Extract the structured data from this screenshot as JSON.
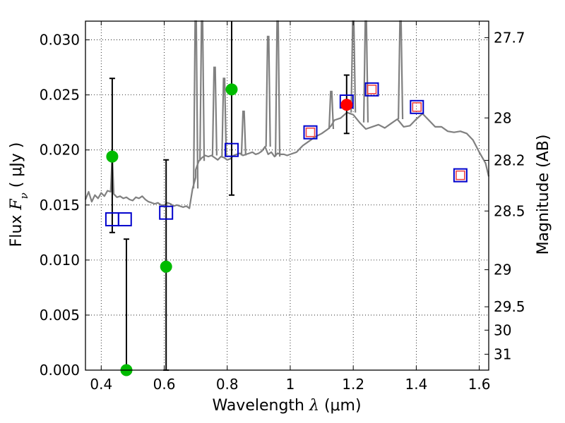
{
  "chart_data": {
    "type": "scatter",
    "xlabel": "Wavelength",
    "xlabel_symbol": "λ",
    "xlabel_unit": "(μm)",
    "ylabel": "Flux",
    "ylabel_symbol": "F",
    "ylabel_subscript": "ν",
    "ylabel_unit": "( μJy )",
    "y2label": "Magnitude (AB)",
    "xlim": [
      0.35,
      1.63
    ],
    "ylim": [
      0.0,
      0.0317
    ],
    "grid": true,
    "x_ticks": [
      0.4,
      0.6,
      0.8,
      1.0,
      1.2,
      1.4,
      1.6
    ],
    "x_tick_labels": [
      "0.4",
      "0.6",
      "0.8",
      "1",
      "1.2",
      "1.4",
      "1.6"
    ],
    "y_ticks": [
      0.0,
      0.005,
      0.01,
      0.015,
      0.02,
      0.025,
      0.03
    ],
    "y_tick_labels": [
      "0.000",
      "0.005",
      "0.010",
      "0.015",
      "0.020",
      "0.025",
      "0.030"
    ],
    "y2_ticks": [
      27.7,
      28.0,
      28.2,
      28.5,
      29.0,
      29.5,
      30.0,
      31.0
    ],
    "y2_tick_labels": [
      "27.7",
      "28",
      "28.2",
      "28.5",
      "29",
      "29.5",
      "30",
      "31"
    ],
    "series": [
      {
        "name": "model_spectrum",
        "style": "line",
        "color": "#808080",
        "x": [
          0.35,
          0.36,
          0.37,
          0.38,
          0.39,
          0.4,
          0.41,
          0.42,
          0.43,
          0.435,
          0.44,
          0.45,
          0.46,
          0.47,
          0.48,
          0.49,
          0.5,
          0.51,
          0.52,
          0.53,
          0.54,
          0.55,
          0.56,
          0.57,
          0.58,
          0.59,
          0.6,
          0.61,
          0.62,
          0.63,
          0.64,
          0.65,
          0.66,
          0.67,
          0.68,
          0.69,
          0.7,
          0.7,
          0.71,
          0.72,
          0.73,
          0.74,
          0.75,
          0.76,
          0.77,
          0.78,
          0.79,
          0.8,
          0.81,
          0.82,
          0.83,
          0.84,
          0.85,
          0.86,
          0.87,
          0.88,
          0.89,
          0.9,
          0.91,
          0.92,
          0.93,
          0.94,
          0.95,
          0.96,
          0.97,
          0.98,
          0.99,
          1.0,
          1.02,
          1.04,
          1.06,
          1.08,
          1.1,
          1.12,
          1.13,
          1.14,
          1.16,
          1.18,
          1.2,
          1.22,
          1.24,
          1.26,
          1.28,
          1.3,
          1.32,
          1.34,
          1.36,
          1.38,
          1.4,
          1.42,
          1.44,
          1.46,
          1.48,
          1.5,
          1.52,
          1.54,
          1.56,
          1.58,
          1.6,
          1.62,
          1.63
        ],
        "y": [
          0.0155,
          0.0162,
          0.0153,
          0.0159,
          0.0156,
          0.0161,
          0.0158,
          0.0163,
          0.0162,
          0.0195,
          0.016,
          0.0157,
          0.0158,
          0.0156,
          0.0157,
          0.0155,
          0.0154,
          0.0157,
          0.0156,
          0.0158,
          0.0155,
          0.0153,
          0.0152,
          0.0151,
          0.0152,
          0.015,
          0.015,
          0.0152,
          0.0151,
          0.0149,
          0.015,
          0.0149,
          0.0148,
          0.0149,
          0.0147,
          0.0165,
          0.0175,
          0.0182,
          0.019,
          0.0193,
          0.0195,
          0.0194,
          0.0195,
          0.0193,
          0.0191,
          0.0194,
          0.0193,
          0.0191,
          0.0192,
          0.0195,
          0.0196,
          0.0197,
          0.0195,
          0.0196,
          0.0197,
          0.0198,
          0.0196,
          0.0197,
          0.0199,
          0.0203,
          0.0196,
          0.0198,
          0.0194,
          0.0197,
          0.0196,
          0.0196,
          0.0195,
          0.0196,
          0.0198,
          0.0204,
          0.0208,
          0.0212,
          0.0215,
          0.0219,
          0.0222,
          0.0227,
          0.0229,
          0.0234,
          0.0232,
          0.0225,
          0.0219,
          0.0221,
          0.0223,
          0.022,
          0.0224,
          0.0228,
          0.0221,
          0.0222,
          0.0228,
          0.0233,
          0.0227,
          0.0221,
          0.0221,
          0.0217,
          0.0216,
          0.0217,
          0.0215,
          0.0209,
          0.0198,
          0.0188,
          0.0176
        ]
      },
      {
        "name": "observed_flux",
        "style": "points",
        "color": "#00bb00",
        "points": [
          {
            "x": 0.435,
            "y": 0.0194,
            "yerr_low": 0.0125,
            "yerr_high": 0.0265
          },
          {
            "x": 0.48,
            "y": 0.0,
            "yerr_low": 0.0,
            "yerr_high": 0.0119
          },
          {
            "x": 0.606,
            "y": 0.0094,
            "yerr_low": 0.0,
            "yerr_high": 0.0191
          },
          {
            "x": 0.814,
            "y": 0.0255,
            "yerr_low": 0.0159,
            "yerr_high": 0.0317
          }
        ]
      },
      {
        "name": "observed_flux_nir",
        "style": "points",
        "color": "#ff0000",
        "points": [
          {
            "x": 1.179,
            "y": 0.0241,
            "yerr_low": 0.0215,
            "yerr_high": 0.0268
          }
        ]
      },
      {
        "name": "model_band_flux",
        "style": "open_squares",
        "color": "#0000cc",
        "points": [
          {
            "x": 0.435,
            "y": 0.0137
          },
          {
            "x": 0.475,
            "y": 0.0137
          },
          {
            "x": 0.606,
            "y": 0.0143
          },
          {
            "x": 0.814,
            "y": 0.02
          },
          {
            "x": 1.064,
            "y": 0.0216
          },
          {
            "x": 1.179,
            "y": 0.0244
          },
          {
            "x": 1.259,
            "y": 0.0255
          },
          {
            "x": 1.402,
            "y": 0.0239
          },
          {
            "x": 1.54,
            "y": 0.0177
          }
        ]
      },
      {
        "name": "model_band_flux_inner",
        "style": "open_squares_small",
        "color": "#ee4444",
        "points": [
          {
            "x": 1.064,
            "y": 0.0216
          },
          {
            "x": 1.259,
            "y": 0.0255
          },
          {
            "x": 1.402,
            "y": 0.0239
          },
          {
            "x": 1.54,
            "y": 0.0177
          }
        ]
      }
    ],
    "emission_lines": [
      {
        "x": 0.7,
        "peak": 0.0317
      },
      {
        "x": 0.72,
        "peak": 0.0317
      },
      {
        "x": 0.76,
        "peak": 0.0275
      },
      {
        "x": 0.79,
        "peak": 0.0265
      },
      {
        "x": 0.852,
        "peak": 0.0235
      },
      {
        "x": 0.93,
        "peak": 0.0303
      },
      {
        "x": 0.96,
        "peak": 0.0317
      },
      {
        "x": 1.13,
        "peak": 0.0253
      },
      {
        "x": 1.2,
        "peak": 0.0317
      },
      {
        "x": 1.24,
        "peak": 0.0317
      },
      {
        "x": 1.35,
        "peak": 0.0317
      }
    ]
  }
}
